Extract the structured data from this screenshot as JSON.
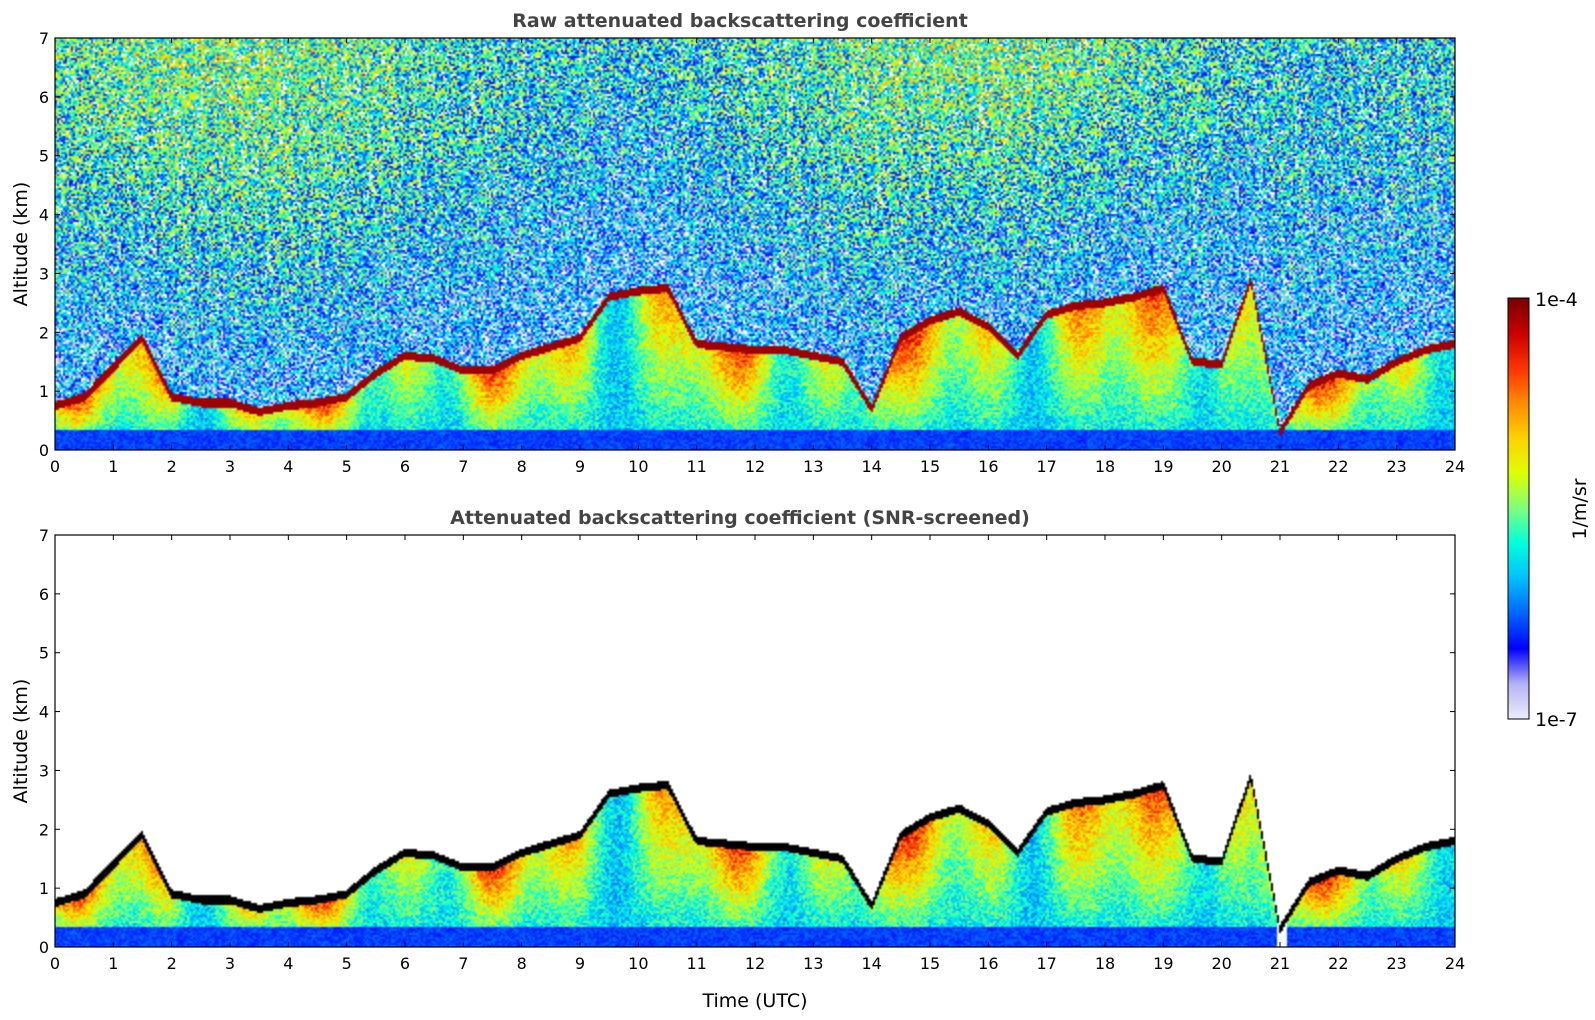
{
  "colors": {
    "colormap": [
      "#ececfa",
      "#b4b4f5",
      "#0000ff",
      "#0064ff",
      "#00beff",
      "#00ffdc",
      "#7dff7d",
      "#dcff00",
      "#ffd200",
      "#ff8c00",
      "#ff3200",
      "#c80000",
      "#780000"
    ],
    "screened_edge": "#000000",
    "background": "#ffffff",
    "title_text": "#444444"
  },
  "colorbar": {
    "label": "1/m/sr",
    "max_label": "1e-4",
    "min_label": "1e-7",
    "min": 1e-07,
    "max": 0.0001,
    "scale": "log"
  },
  "chart_data": [
    {
      "type": "heatmap",
      "title": "Raw attenuated backscattering coefficient",
      "xlabel": "",
      "ylabel": "Altitude (km)",
      "xlim": [
        0,
        24
      ],
      "ylim": [
        0,
        7
      ],
      "xticks": [
        "0",
        "1",
        "2",
        "3",
        "4",
        "5",
        "6",
        "7",
        "8",
        "9",
        "10",
        "11",
        "12",
        "13",
        "14",
        "15",
        "16",
        "17",
        "18",
        "19",
        "20",
        "21",
        "22",
        "23",
        "24"
      ],
      "yticks": [
        "0",
        "1",
        "2",
        "3",
        "4",
        "5",
        "6",
        "7"
      ],
      "screened": false
    },
    {
      "type": "heatmap",
      "title": "Attenuated backscattering coefficient (SNR-screened)",
      "xlabel": "Time (UTC)",
      "ylabel": "Altitude (km)",
      "xlim": [
        0,
        24
      ],
      "ylim": [
        0,
        7
      ],
      "xticks": [
        "0",
        "1",
        "2",
        "3",
        "4",
        "5",
        "6",
        "7",
        "8",
        "9",
        "10",
        "11",
        "12",
        "13",
        "14",
        "15",
        "16",
        "17",
        "18",
        "19",
        "20",
        "21",
        "22",
        "23",
        "24"
      ],
      "yticks": [
        "0",
        "1",
        "2",
        "3",
        "4",
        "5",
        "6",
        "7"
      ],
      "screened": true
    }
  ],
  "cloud_top_km": {
    "time_utc": [
      0,
      0.5,
      1,
      1.5,
      2,
      2.5,
      3,
      3.5,
      4,
      4.5,
      5,
      5.5,
      6,
      6.5,
      7,
      7.5,
      8,
      8.5,
      9,
      9.5,
      10,
      10.5,
      11,
      11.5,
      12,
      12.5,
      13,
      13.5,
      14,
      14.5,
      15,
      15.5,
      16,
      16.5,
      17,
      17.5,
      18,
      18.5,
      19,
      19.5,
      20,
      20.5,
      21,
      21.5,
      22,
      22.5,
      23,
      23.5,
      24
    ],
    "altitude": [
      0.75,
      0.9,
      1.4,
      1.9,
      0.9,
      0.8,
      0.8,
      0.65,
      0.75,
      0.8,
      0.9,
      1.3,
      1.6,
      1.55,
      1.35,
      1.35,
      1.6,
      1.75,
      1.9,
      2.6,
      2.7,
      2.75,
      1.8,
      1.75,
      1.7,
      1.7,
      1.6,
      1.5,
      0.7,
      1.9,
      2.2,
      2.35,
      2.1,
      1.6,
      2.3,
      2.45,
      2.5,
      2.6,
      2.75,
      1.5,
      1.45,
      2.9,
      0.3,
      1.1,
      1.3,
      1.2,
      1.5,
      1.7,
      1.8
    ]
  }
}
